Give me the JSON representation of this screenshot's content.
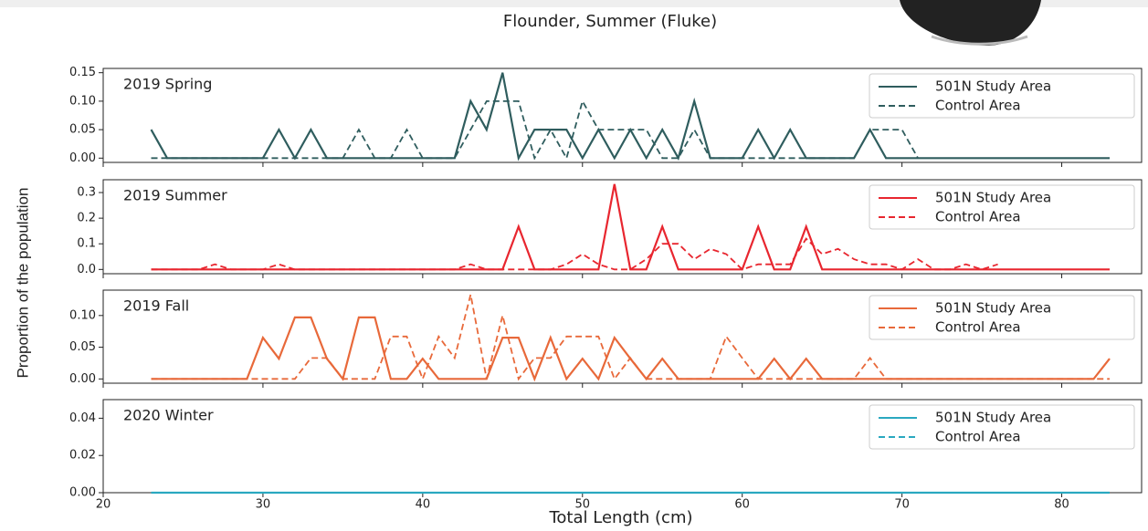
{
  "figure": {
    "title": "Flounder, Summer (Fluke)",
    "x_label": "Total Length (cm)",
    "y_label": "Proportion of the population"
  },
  "chart_data": [
    {
      "type": "line",
      "title": "2019 Spring",
      "legend": "upper right",
      "x": [
        23,
        24,
        25,
        26,
        27,
        28,
        29,
        30,
        31,
        32,
        33,
        34,
        35,
        36,
        37,
        38,
        39,
        40,
        41,
        42,
        43,
        44,
        45,
        46,
        47,
        48,
        49,
        50,
        51,
        52,
        53,
        54,
        55,
        56,
        57,
        58,
        59,
        60,
        61,
        62,
        63,
        64,
        65,
        66,
        67,
        68,
        69,
        70,
        71,
        72,
        73,
        74,
        75,
        76,
        77,
        78,
        79,
        80,
        81,
        82,
        83
      ],
      "series": [
        {
          "name": "501N Study Area",
          "color": "#2f5d5e",
          "dash": false,
          "values": [
            0.05,
            0,
            0,
            0,
            0,
            0,
            0,
            0,
            0.05,
            0,
            0.05,
            0,
            0,
            0,
            0,
            0,
            0,
            0,
            0,
            0,
            0.1,
            0.05,
            0.15,
            0,
            0.05,
            0.05,
            0.05,
            0,
            0.05,
            0,
            0.05,
            0,
            0.05,
            0,
            0.1,
            0,
            0,
            0,
            0.05,
            0,
            0.05,
            0,
            0,
            0,
            0,
            0.05,
            0,
            0,
            0,
            0,
            0,
            0,
            0,
            0,
            0,
            0,
            0,
            0,
            0,
            0,
            0
          ]
        },
        {
          "name": "Control Area",
          "color": "#2f5d5e",
          "dash": true,
          "values": [
            0,
            0,
            0,
            0,
            0,
            0,
            0,
            0,
            0,
            0,
            0,
            0,
            0,
            0.05,
            0,
            0,
            0.05,
            0,
            0,
            0,
            0.05,
            0.1,
            0.1,
            0.1,
            0,
            0.05,
            0,
            0.1,
            0.05,
            0.05,
            0.05,
            0.05,
            0,
            0,
            0.05,
            0,
            0,
            0,
            0,
            0,
            0,
            0,
            0,
            0,
            0,
            0.05,
            0.05,
            0.05,
            0,
            null,
            null,
            null,
            null,
            null,
            null,
            null,
            null,
            null,
            null,
            null,
            null
          ]
        }
      ],
      "ylim": [
        -0.0075,
        0.1575
      ],
      "yticks": [
        {
          "value": 0,
          "label": "0.00"
        },
        0.05,
        {
          "value": 0.1,
          "label": "0.10"
        },
        0.15
      ]
    },
    {
      "type": "line",
      "title": "2019 Summer",
      "legend": "upper right",
      "x": [
        23,
        24,
        25,
        26,
        27,
        28,
        29,
        30,
        31,
        32,
        33,
        34,
        35,
        36,
        37,
        38,
        39,
        40,
        41,
        42,
        43,
        44,
        45,
        46,
        47,
        48,
        49,
        50,
        51,
        52,
        53,
        54,
        55,
        56,
        57,
        58,
        59,
        60,
        61,
        62,
        63,
        64,
        65,
        66,
        67,
        68,
        69,
        70,
        71,
        72,
        73,
        74,
        75,
        76,
        77,
        78,
        79,
        80,
        81,
        82,
        83
      ],
      "series": [
        {
          "name": "501N Study Area",
          "color": "#e8262f",
          "dash": false,
          "values": [
            0,
            0,
            0,
            0,
            0,
            0,
            0,
            0,
            0,
            0,
            0,
            0,
            0,
            0,
            0,
            0,
            0,
            0,
            0,
            0,
            0,
            0,
            0,
            0.167,
            0,
            0,
            0,
            0,
            0,
            0.333,
            0,
            0,
            0.167,
            0,
            0,
            0,
            0,
            0,
            0.167,
            0,
            0,
            0.167,
            0,
            0,
            0,
            0,
            0,
            0,
            0,
            0,
            0,
            0,
            0,
            0,
            0,
            0,
            0,
            0,
            0,
            0,
            0
          ]
        },
        {
          "name": "Control Area",
          "color": "#e8262f",
          "dash": true,
          "values": [
            0,
            0,
            0,
            0,
            0.02,
            0,
            0,
            0,
            0.02,
            0,
            0,
            0,
            0,
            0,
            0,
            0,
            0,
            0,
            0,
            0,
            0.02,
            0,
            0,
            0,
            0,
            0,
            0.02,
            0.06,
            0.02,
            0,
            0,
            0.04,
            0.1,
            0.1,
            0.04,
            0.08,
            0.06,
            0,
            0.02,
            0.02,
            0.02,
            0.12,
            0.06,
            0.08,
            0.04,
            0.02,
            0.02,
            0,
            0.04,
            0,
            0,
            0.02,
            0,
            0.02,
            null,
            null,
            null,
            null,
            null,
            null,
            null
          ]
        }
      ],
      "ylim": [
        -0.0167,
        0.35
      ],
      "yticks": [
        {
          "value": 0,
          "label": "0.0"
        },
        0.1,
        0.2,
        0.3
      ]
    },
    {
      "type": "line",
      "title": "2019 Fall",
      "legend": "upper right",
      "x": [
        23,
        24,
        25,
        26,
        27,
        28,
        29,
        30,
        31,
        32,
        33,
        34,
        35,
        36,
        37,
        38,
        39,
        40,
        41,
        42,
        43,
        44,
        45,
        46,
        47,
        48,
        49,
        50,
        51,
        52,
        53,
        54,
        55,
        56,
        57,
        58,
        59,
        60,
        61,
        62,
        63,
        64,
        65,
        66,
        67,
        68,
        69,
        70,
        71,
        72,
        73,
        74,
        75,
        76,
        77,
        78,
        79,
        80,
        81,
        82,
        83
      ],
      "series": [
        {
          "name": "501N Study Area",
          "color": "#e8693a",
          "dash": false,
          "values": [
            0,
            0,
            0,
            0,
            0,
            0,
            0,
            0.065,
            0.032,
            0.097,
            0.097,
            0.032,
            0,
            0.097,
            0.097,
            0,
            0,
            0.032,
            0,
            0,
            0,
            0,
            0.065,
            0.065,
            0,
            0.065,
            0,
            0.032,
            0,
            0.065,
            0.032,
            0,
            0.032,
            0,
            0,
            0,
            0,
            0,
            0,
            0.032,
            0,
            0.032,
            0,
            0,
            0,
            0,
            0,
            0,
            0,
            0,
            0,
            0,
            0,
            0,
            0,
            0,
            0,
            0,
            0,
            0,
            0.032
          ]
        },
        {
          "name": "Control Area",
          "color": "#e8693a",
          "dash": true,
          "values": [
            0,
            0,
            0,
            0,
            0,
            0,
            0,
            0,
            0,
            0,
            0.033,
            0.033,
            0,
            0,
            0,
            0.067,
            0.067,
            0,
            0.067,
            0.033,
            0.133,
            0,
            0.1,
            0,
            0.033,
            0.033,
            0.067,
            0.067,
            0.067,
            0,
            0.033,
            0,
            0,
            0,
            0,
            0,
            0.067,
            0.033,
            0,
            0,
            0,
            0,
            0,
            0,
            0,
            0.033,
            0,
            0,
            0,
            0,
            0,
            0,
            0,
            0,
            0,
            0,
            0,
            0,
            0,
            0,
            0
          ]
        }
      ],
      "ylim": [
        -0.0067,
        0.14
      ],
      "yticks": [
        {
          "value": 0,
          "label": "0.00"
        },
        0.05,
        {
          "value": 0.1,
          "label": "0.10"
        }
      ]
    },
    {
      "type": "line",
      "title": "2020 Winter",
      "legend": "upper right",
      "x": [
        23,
        24,
        25,
        26,
        27,
        28,
        29,
        30,
        31,
        32,
        33,
        34,
        35,
        36,
        37,
        38,
        39,
        40,
        41,
        42,
        43,
        44,
        45,
        46,
        47,
        48,
        49,
        50,
        51,
        52,
        53,
        54,
        55,
        56,
        57,
        58,
        59,
        60,
        61,
        62,
        63,
        64,
        65,
        66,
        67,
        68,
        69,
        70,
        71,
        72,
        73,
        74,
        75,
        76,
        77,
        78,
        79,
        80,
        81,
        82,
        83
      ],
      "series": [
        {
          "name": "501N Study Area",
          "color": "#2aa8c0",
          "dash": false,
          "values": [
            0,
            0,
            0,
            0,
            0,
            0,
            0,
            0,
            0,
            0,
            0,
            0,
            0,
            0,
            0,
            0,
            0,
            0,
            0,
            0,
            0,
            0,
            0,
            0,
            0,
            0,
            0,
            0,
            0,
            0,
            0,
            0,
            0,
            0,
            0,
            0,
            0,
            0,
            0,
            0,
            0,
            0,
            0,
            0,
            0,
            0,
            0,
            0,
            0,
            0,
            0,
            0,
            0,
            0,
            0,
            0,
            0,
            0,
            0,
            0,
            0
          ]
        },
        {
          "name": "Control Area",
          "color": "#2aa8c0",
          "dash": true,
          "values": [
            0,
            0,
            0,
            0,
            0,
            0,
            0,
            0,
            0,
            0,
            0,
            0,
            0,
            0,
            0,
            0,
            0,
            0,
            0,
            0,
            0,
            0,
            0,
            0,
            0,
            0,
            0,
            0,
            0,
            0,
            0,
            0,
            0,
            0,
            0,
            0,
            0,
            0,
            0,
            0,
            0,
            0,
            0,
            0,
            0,
            0,
            0,
            0,
            0,
            0,
            0,
            0,
            0,
            0,
            0,
            0,
            0,
            0,
            0,
            0,
            0
          ]
        }
      ],
      "ylim": [
        0,
        0.05
      ],
      "yticks": [
        {
          "value": 0,
          "label": "0.00"
        },
        0.02,
        0.04
      ],
      "xlim": [
        20,
        85
      ],
      "xticks": [
        20,
        30,
        40,
        50,
        60,
        70,
        80
      ]
    }
  ]
}
